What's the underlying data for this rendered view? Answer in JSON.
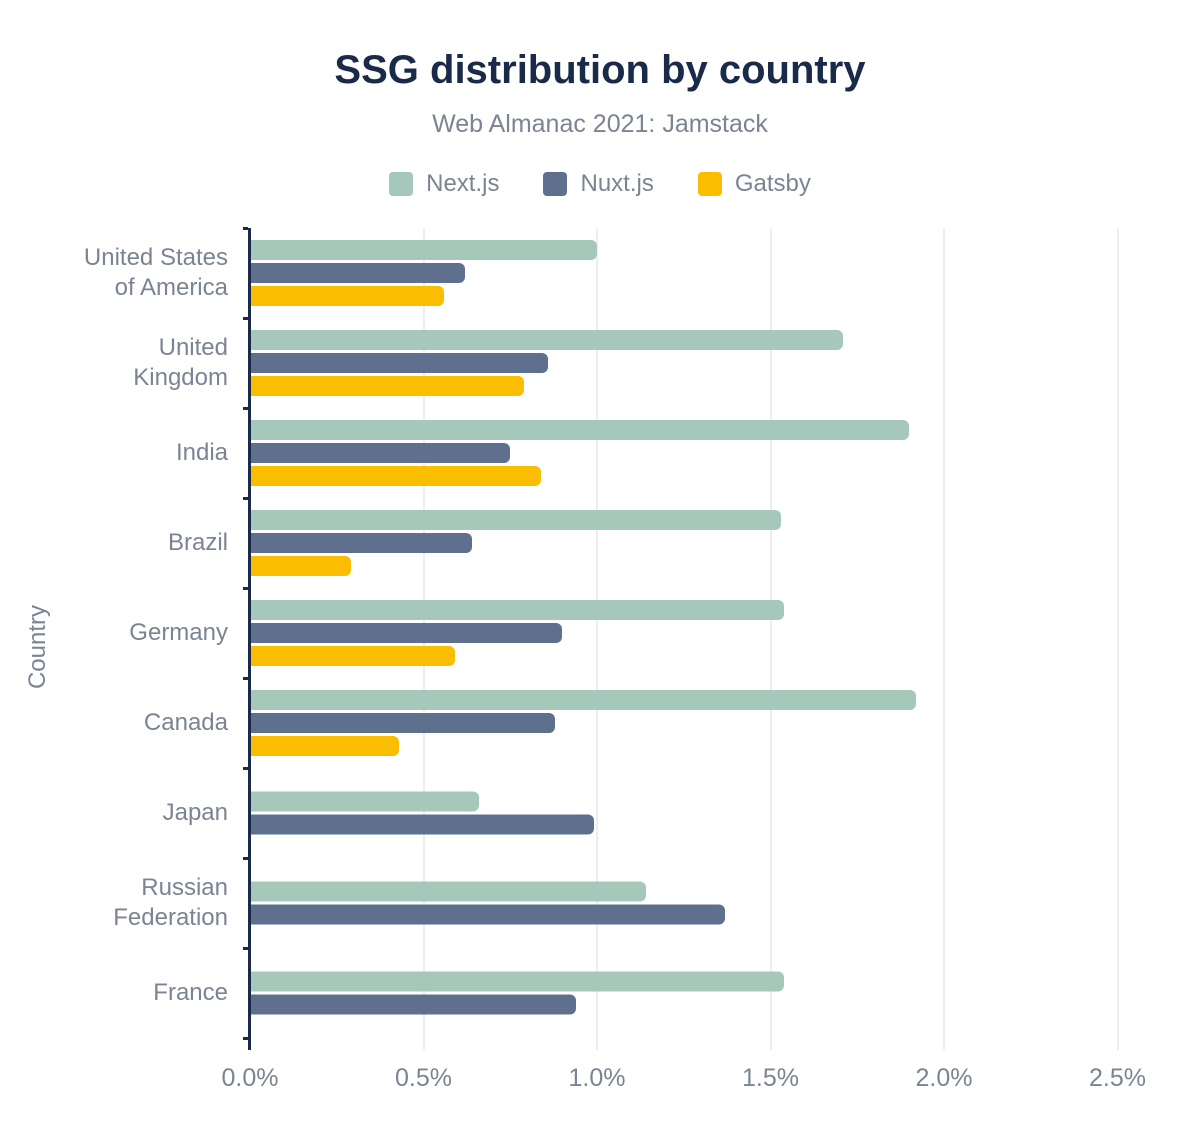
{
  "chart_data": {
    "type": "bar",
    "orientation": "horizontal",
    "title": "SSG distribution by country",
    "subtitle": "Web Almanac 2021: Jamstack",
    "ylabel": "Country",
    "xlabel": "",
    "value_unit": "%",
    "xlim": [
      0,
      2.5
    ],
    "x_ticks": [
      "0.0%",
      "0.5%",
      "1.0%",
      "1.5%",
      "2.0%",
      "2.5%"
    ],
    "grid": true,
    "legend_position": "top",
    "categories": [
      "United States\nof America",
      "United\nKingdom",
      "India",
      "Brazil",
      "Germany",
      "Canada",
      "Japan",
      "Russian\nFederation",
      "France"
    ],
    "series": [
      {
        "name": "Next.js",
        "color": "#a6c8bb",
        "values": [
          1.0,
          1.71,
          1.9,
          1.53,
          1.54,
          1.92,
          0.66,
          1.14,
          1.54
        ]
      },
      {
        "name": "Nuxt.js",
        "color": "#5e708e",
        "values": [
          0.62,
          0.86,
          0.75,
          0.64,
          0.9,
          0.88,
          0.99,
          1.37,
          0.94
        ]
      },
      {
        "name": "Gatsby",
        "color": "#fabd00",
        "values": [
          0.56,
          0.79,
          0.84,
          0.29,
          0.59,
          0.43,
          null,
          null,
          null
        ]
      }
    ]
  },
  "style": {
    "title_color": "#1a2b49",
    "text_color": "#7b8493",
    "axis_color": "#1a2b49",
    "gridline_color": "#eceef0",
    "background": "#ffffff"
  }
}
